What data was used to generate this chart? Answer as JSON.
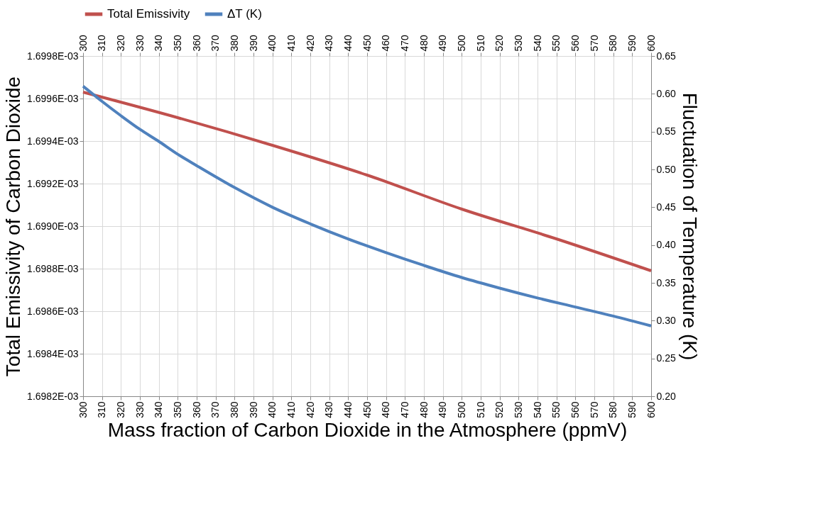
{
  "chart_data": {
    "type": "line",
    "xlabel": "Mass fraction of Carbon Dioxide in the Atmosphere (ppmV)",
    "ylabel": "Total Emissivity of Carbon Dioxide",
    "y2label": "Fluctuation of Temperature (K)",
    "xlim": [
      300,
      600
    ],
    "xticks": [
      300,
      310,
      320,
      330,
      340,
      350,
      360,
      370,
      380,
      390,
      400,
      410,
      420,
      430,
      440,
      450,
      460,
      470,
      480,
      490,
      500,
      510,
      520,
      530,
      540,
      550,
      560,
      570,
      580,
      590,
      600
    ],
    "x2lim": [
      300,
      600
    ],
    "x2ticks": [
      300,
      310,
      320,
      330,
      340,
      350,
      360,
      370,
      380,
      390,
      400,
      410,
      420,
      430,
      440,
      450,
      460,
      470,
      480,
      490,
      500,
      510,
      520,
      530,
      540,
      550,
      560,
      570,
      580,
      590,
      600
    ],
    "ylim": [
      0.0016982,
      0.0016998
    ],
    "yticks": [
      {
        "value": 0.0016982,
        "label": "1.6982E-03"
      },
      {
        "value": 0.0016984,
        "label": "1.6984E-03"
      },
      {
        "value": 0.0016986,
        "label": "1.6986E-03"
      },
      {
        "value": 0.0016988,
        "label": "1.6988E-03"
      },
      {
        "value": 0.001699,
        "label": "1.6990E-03"
      },
      {
        "value": 0.0016992,
        "label": "1.6992E-03"
      },
      {
        "value": 0.0016994,
        "label": "1.6994E-03"
      },
      {
        "value": 0.0016996,
        "label": "1.6996E-03"
      },
      {
        "value": 0.0016998,
        "label": "1.6998E-03"
      }
    ],
    "y2lim": [
      0.2,
      0.65
    ],
    "y2ticks": [
      {
        "value": 0.2,
        "label": "0.20"
      },
      {
        "value": 0.25,
        "label": "0.25"
      },
      {
        "value": 0.3,
        "label": "0.30"
      },
      {
        "value": 0.35,
        "label": "0.35"
      },
      {
        "value": 0.4,
        "label": "0.40"
      },
      {
        "value": 0.45,
        "label": "0.45"
      },
      {
        "value": 0.5,
        "label": "0.50"
      },
      {
        "value": 0.55,
        "label": "0.55"
      },
      {
        "value": 0.6,
        "label": "0.60"
      },
      {
        "value": 0.65,
        "label": "0.65"
      }
    ],
    "grid": true,
    "legend": "top",
    "marker": "none",
    "line_style": "solid",
    "series": [
      {
        "name": "Total Emissivity",
        "color": "#c0504d",
        "x": [
          300,
          350,
          400,
          450,
          500,
          550,
          600
        ],
        "values": [
          0.00169963,
          0.00169951,
          0.00169938,
          0.00169924,
          0.00169908,
          0.00169894,
          0.00169879
        ]
      },
      {
        "name": "ΔT (K)",
        "color": "#4f81bd",
        "axis": "y2",
        "x": [
          300,
          310,
          320,
          330,
          340,
          350,
          360,
          380,
          400,
          420,
          440,
          460,
          480,
          500,
          520,
          540,
          560,
          580,
          600
        ],
        "values": [
          0.61,
          0.59,
          0.571,
          0.553,
          0.537,
          0.52,
          0.505,
          0.476,
          0.45,
          0.428,
          0.408,
          0.39,
          0.373,
          0.357,
          0.343,
          0.33,
          0.318,
          0.306,
          0.293
        ]
      }
    ]
  }
}
